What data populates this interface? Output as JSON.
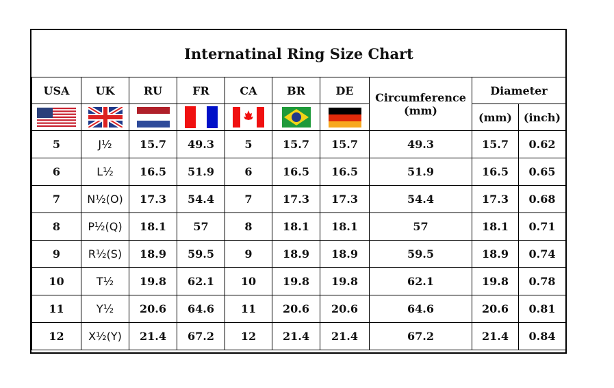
{
  "title": "Internatinal Ring Size Chart",
  "headers": {
    "usa": "USA",
    "uk": "UK",
    "ru": "RU",
    "fr": "FR",
    "ca": "CA",
    "br": "BR",
    "de": "DE",
    "circ": "Circumference",
    "circ_unit": "(mm)",
    "diameter": "Diameter",
    "mm": "(mm)",
    "inch": "(inch)"
  },
  "flags": [
    "usa-flag",
    "uk-flag",
    "ru-flag",
    "fr-flag",
    "ca-flag",
    "br-flag",
    "de-flag"
  ],
  "rows": [
    {
      "usa": "5",
      "uk": "J½",
      "ru": "15.7",
      "fr": "49.3",
      "ca": "5",
      "br": "15.7",
      "de": "15.7",
      "circ": "49.3",
      "mm": "15.7",
      "inch": "0.62"
    },
    {
      "usa": "6",
      "uk": "L½",
      "ru": "16.5",
      "fr": "51.9",
      "ca": "6",
      "br": "16.5",
      "de": "16.5",
      "circ": "51.9",
      "mm": "16.5",
      "inch": "0.65"
    },
    {
      "usa": "7",
      "uk": "N½(O)",
      "ru": "17.3",
      "fr": "54.4",
      "ca": "7",
      "br": "17.3",
      "de": "17.3",
      "circ": "54.4",
      "mm": "17.3",
      "inch": "0.68"
    },
    {
      "usa": "8",
      "uk": "P½(Q)",
      "ru": "18.1",
      "fr": "57",
      "ca": "8",
      "br": "18.1",
      "de": "18.1",
      "circ": "57",
      "mm": "18.1",
      "inch": "0.71"
    },
    {
      "usa": "9",
      "uk": "R½(S)",
      "ru": "18.9",
      "fr": "59.5",
      "ca": "9",
      "br": "18.9",
      "de": "18.9",
      "circ": "59.5",
      "mm": "18.9",
      "inch": "0.74"
    },
    {
      "usa": "10",
      "uk": "T½",
      "ru": "19.8",
      "fr": "62.1",
      "ca": "10",
      "br": "19.8",
      "de": "19.8",
      "circ": "62.1",
      "mm": "19.8",
      "inch": "0.78"
    },
    {
      "usa": "11",
      "uk": "Y½",
      "ru": "20.6",
      "fr": "64.6",
      "ca": "11",
      "br": "20.6",
      "de": "20.6",
      "circ": "64.6",
      "mm": "20.6",
      "inch": "0.81"
    },
    {
      "usa": "12",
      "uk": "X½(Y)",
      "ru": "21.4",
      "fr": "67.2",
      "ca": "12",
      "br": "21.4",
      "de": "21.4",
      "circ": "67.2",
      "mm": "21.4",
      "inch": "0.84"
    }
  ]
}
